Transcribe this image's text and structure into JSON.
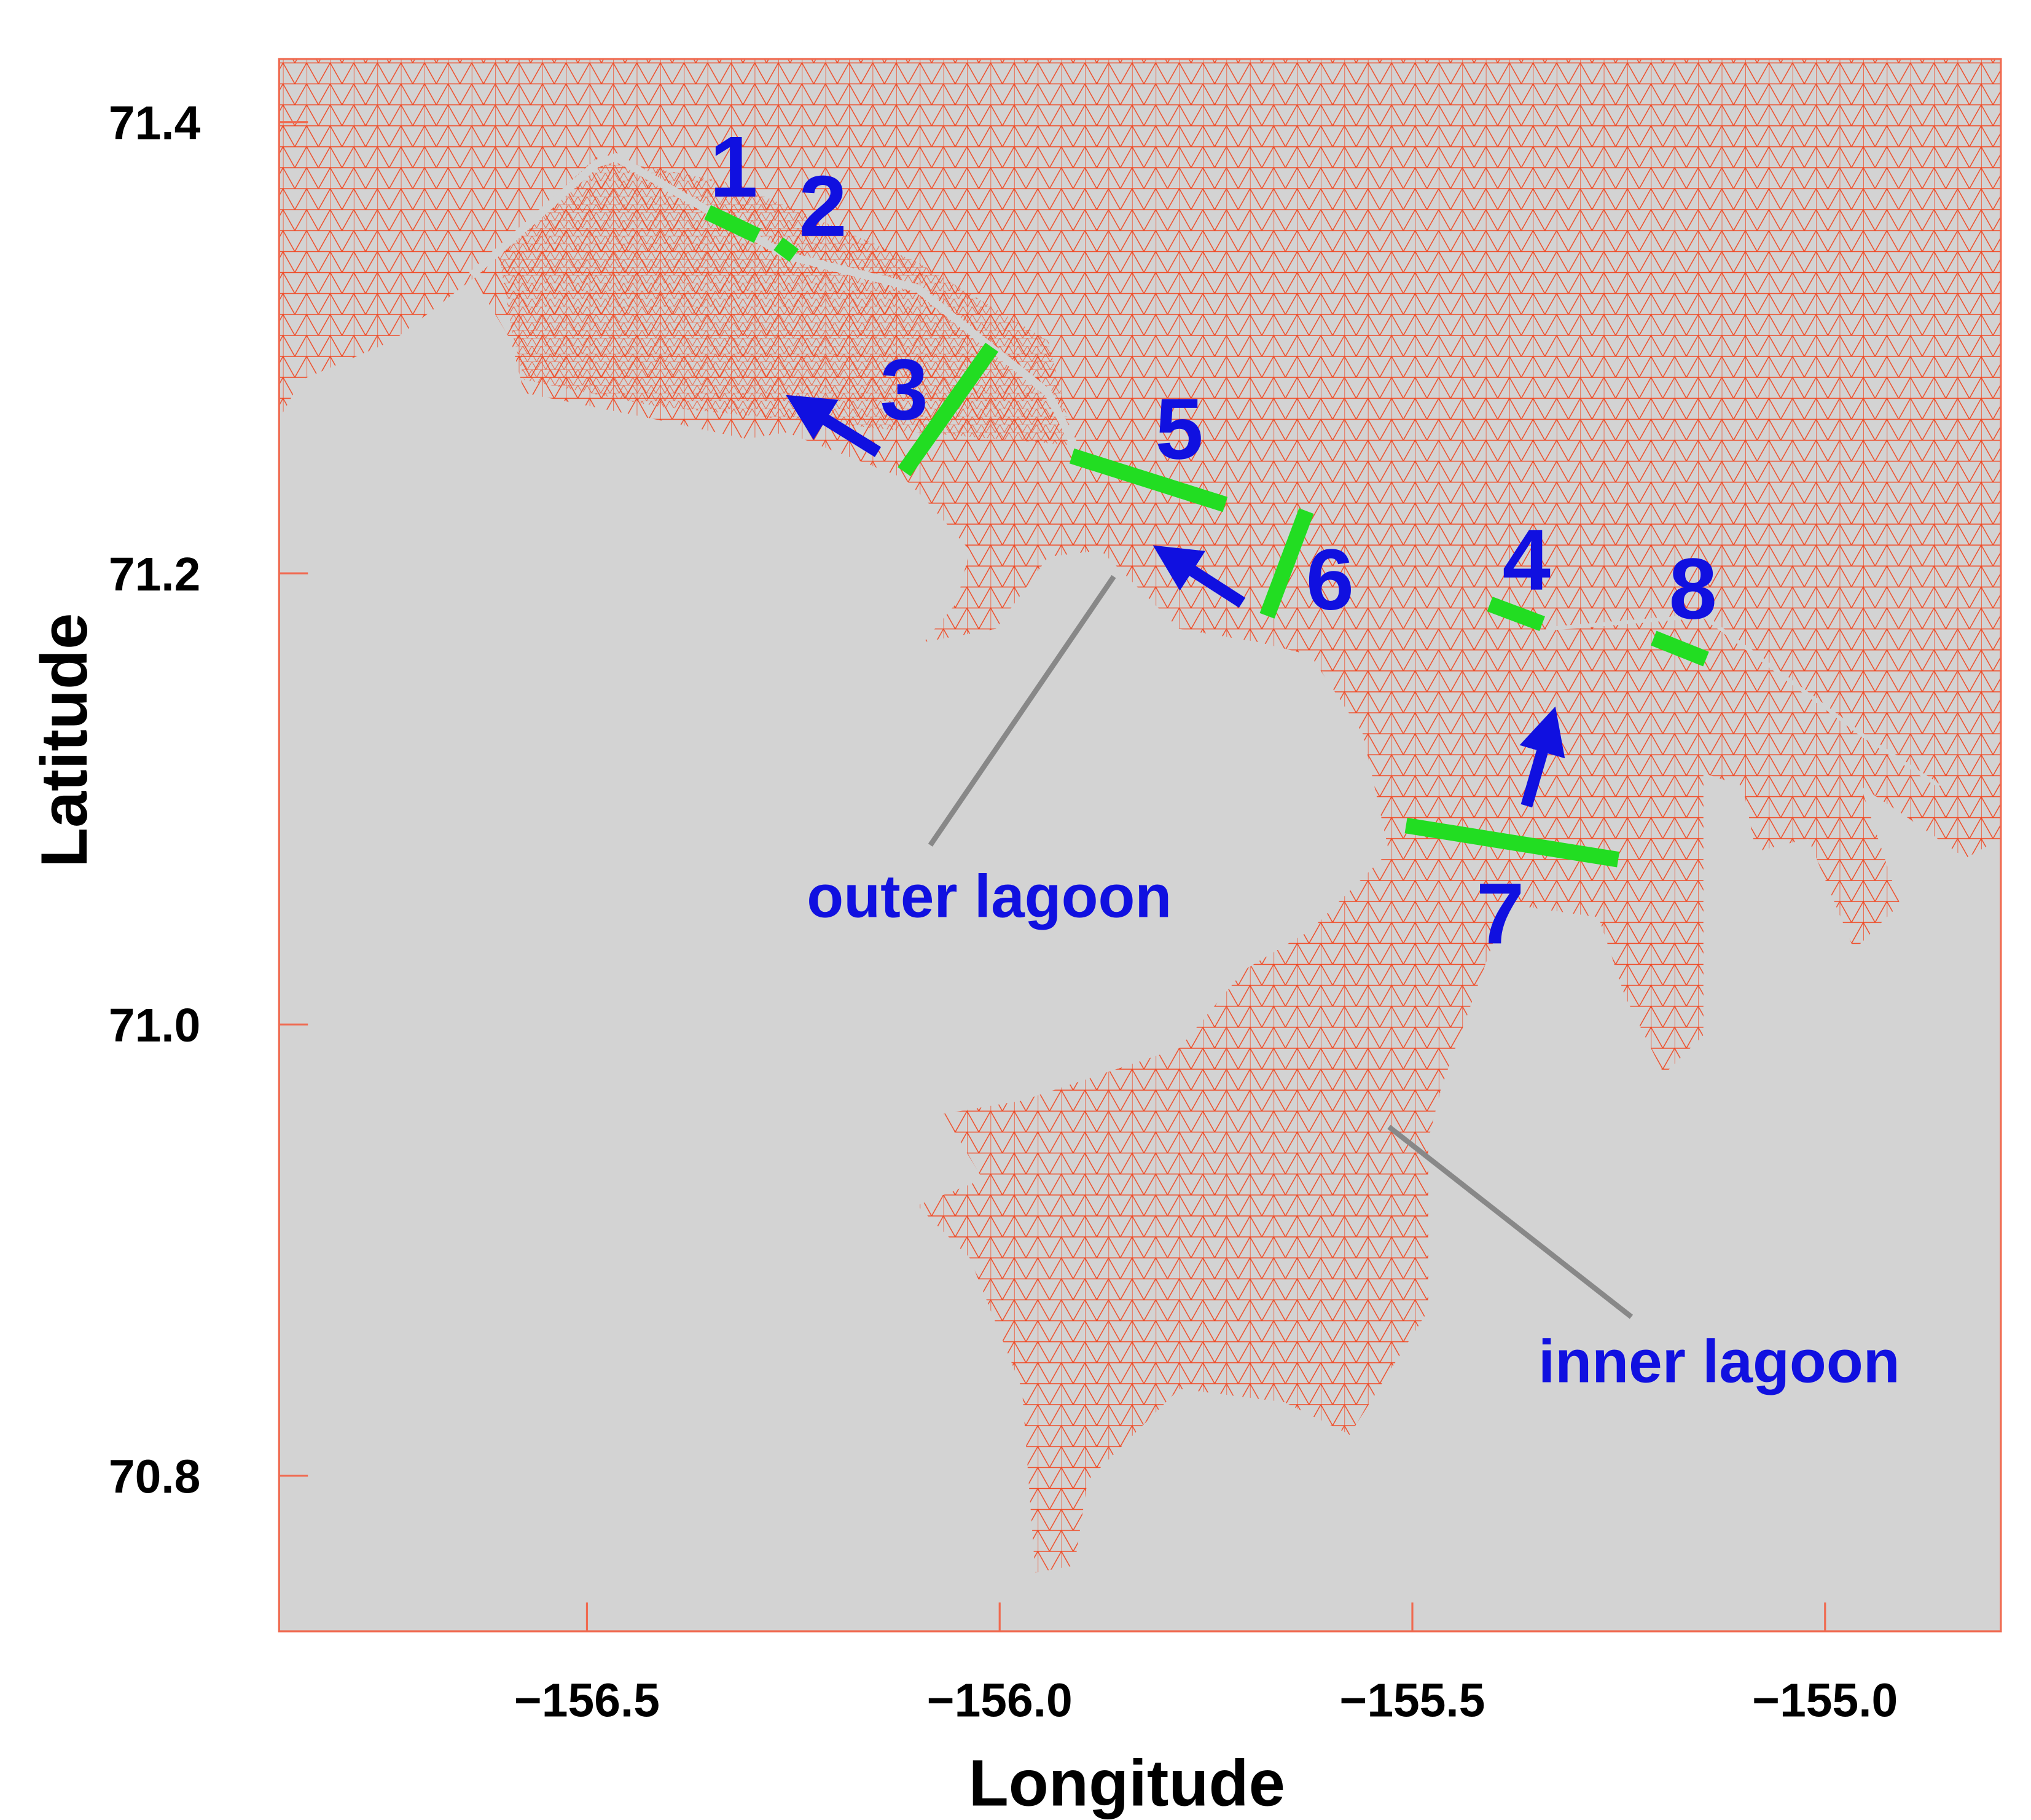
{
  "map": {
    "xlabel": "Longitude",
    "ylabel": "Latitude",
    "xlim": [
      -156.873,
      -154.787
    ],
    "ylim": [
      70.731,
      71.428
    ],
    "xticks": [
      {
        "value": -156.5,
        "label": "−156.5"
      },
      {
        "value": -156,
        "label": "−156.0"
      },
      {
        "value": -155.5,
        "label": "−155.5"
      },
      {
        "value": -155,
        "label": "−155.0"
      }
    ],
    "yticks": [
      71.4,
      71.2,
      {
        "value": 71,
        "label": "71.0"
      },
      70.8
    ],
    "transects": [
      "1",
      "2",
      "3",
      "5",
      "6",
      "4",
      "8",
      "7"
    ],
    "annotations": [
      "outer lagoon",
      "inner lagoon"
    ]
  }
}
